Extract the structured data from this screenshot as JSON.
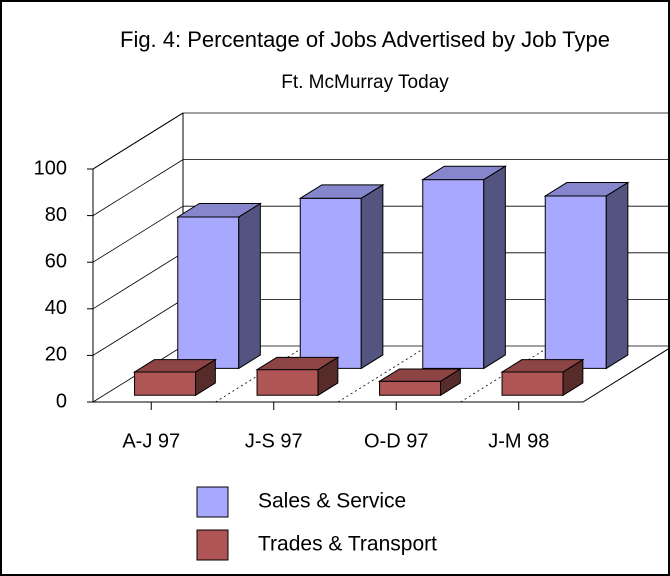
{
  "chart_data": {
    "type": "bar3d",
    "title": "Fig. 4: Percentage of Jobs Advertised by Job Type",
    "subtitle": "Ft. McMurray Today",
    "categories": [
      "A-J 97",
      "J-S 97",
      "O-D 97",
      "J-M 98"
    ],
    "series": [
      {
        "name": "Sales & Service",
        "color": "#a8a8ff",
        "values": [
          65,
          73,
          81,
          74
        ]
      },
      {
        "name": "Trades & Transport",
        "color": "#b05555",
        "values": [
          10,
          11,
          6,
          10
        ]
      }
    ],
    "ylim": [
      0,
      100
    ],
    "yticks": [
      0,
      20,
      40,
      60,
      80,
      100
    ],
    "grid": true
  }
}
